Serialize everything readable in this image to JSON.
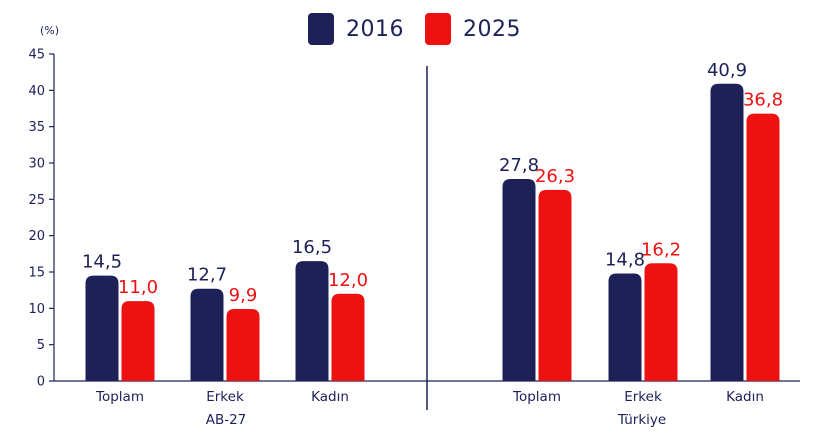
{
  "legend": {
    "items": [
      {
        "label": "2016",
        "color": "#1d2158"
      },
      {
        "label": "2025",
        "color": "#ee1111"
      }
    ]
  },
  "chart_data": {
    "type": "bar",
    "y_unit_label": "(%)",
    "ylim": [
      0,
      45
    ],
    "yticks": [
      0,
      5,
      10,
      15,
      20,
      25,
      30,
      35,
      40,
      45
    ],
    "grid": false,
    "legend_position": "top-center",
    "groups": [
      {
        "name": "AB-27",
        "categories": [
          "Toplam",
          "Erkek",
          "Kadın"
        ],
        "series": [
          {
            "name": "2016",
            "values": [
              14.5,
              12.7,
              16.5
            ],
            "labels": [
              "14,5",
              "12,7",
              "16,5"
            ]
          },
          {
            "name": "2025",
            "values": [
              11.0,
              9.9,
              12.0
            ],
            "labels": [
              "11,0",
              "9,9",
              "12,0"
            ]
          }
        ]
      },
      {
        "name": "Türkiye",
        "categories": [
          "Toplam",
          "Erkek",
          "Kadın"
        ],
        "series": [
          {
            "name": "2016",
            "values": [
              27.8,
              14.8,
              40.9
            ],
            "labels": [
              "27,8",
              "14,8",
              "40,9"
            ]
          },
          {
            "name": "2025",
            "values": [
              26.3,
              16.2,
              36.8
            ],
            "labels": [
              "26,3",
              "16,2",
              "36,8"
            ]
          }
        ]
      }
    ],
    "colors": {
      "2016": "#1d2158",
      "2025": "#ee1111"
    }
  }
}
